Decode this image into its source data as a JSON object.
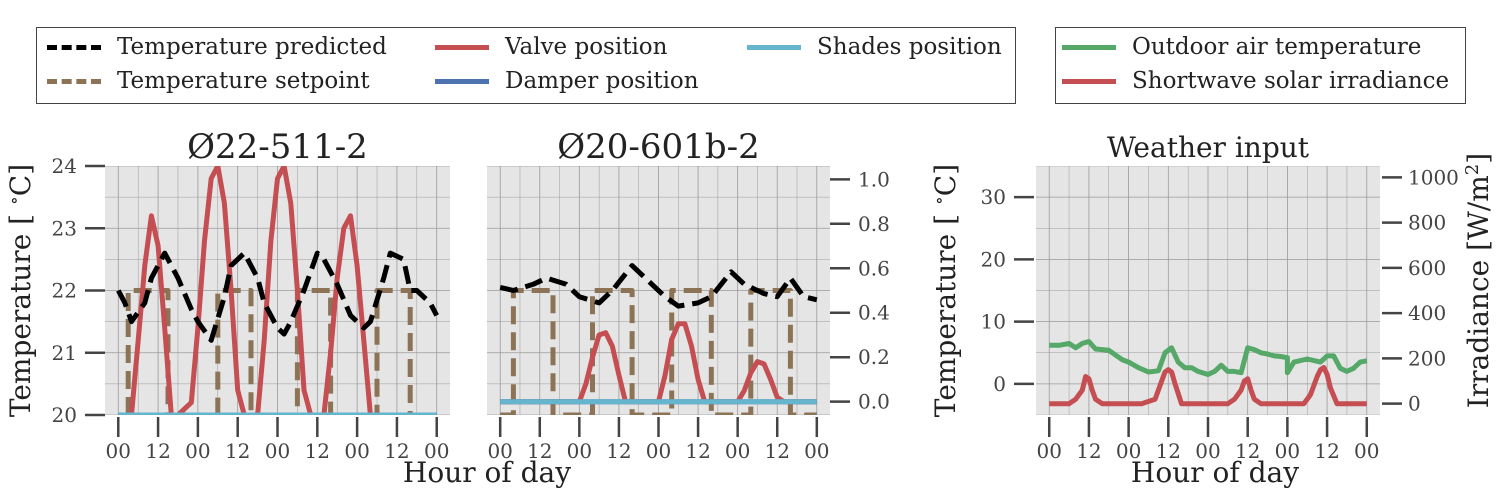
{
  "legend_main": [
    {
      "label": "Temperature predicted",
      "color": "#000000",
      "dash": true
    },
    {
      "label": "Temperature setpoint",
      "color": "#8c7356",
      "dash": true
    },
    {
      "label": "Valve position",
      "color": "#c44e52",
      "dash": false
    },
    {
      "label": "Damper position",
      "color": "#4c72b0",
      "dash": false
    },
    {
      "label": "Shades position",
      "color": "#64b5cd",
      "dash": false
    }
  ],
  "legend_weather": [
    {
      "label": "Outdoor air temperature",
      "color": "#55a868",
      "dash": false
    },
    {
      "label": "Shortwave solar irradiance",
      "color": "#c44e52",
      "dash": false
    }
  ],
  "shared": {
    "xlabel": "Hour of day",
    "x_ticklabels": [
      "00",
      "12",
      "00",
      "12",
      "00",
      "12",
      "00",
      "12",
      "00"
    ],
    "x_ticks_hours": [
      0,
      12,
      24,
      36,
      48,
      60,
      72,
      84,
      96
    ]
  },
  "chart_data": [
    {
      "type": "line",
      "title": "Ø22-511-2",
      "ylabel": "Temperature [$^\\circ$C]",
      "ylim_left": [
        20,
        24
      ],
      "left_ticks": [
        "20",
        "21",
        "22",
        "23",
        "24"
      ],
      "ylim_right": [
        0,
        1
      ],
      "grid": true,
      "series": [
        {
          "name": "Temperature predicted",
          "axis": "left",
          "x": [
            0,
            2,
            4,
            8,
            10,
            14,
            18,
            22,
            24,
            28,
            32,
            34,
            38,
            42,
            44,
            48,
            50,
            52,
            56,
            60,
            62,
            66,
            70,
            74,
            76,
            80,
            82,
            86,
            88,
            90,
            94,
            96
          ],
          "y": [
            22.0,
            21.8,
            21.5,
            21.8,
            22.2,
            22.6,
            22.2,
            21.7,
            21.5,
            21.2,
            21.9,
            22.4,
            22.6,
            22.2,
            21.8,
            21.4,
            21.3,
            21.5,
            22.0,
            22.6,
            22.5,
            22.1,
            21.6,
            21.4,
            21.5,
            22.2,
            22.6,
            22.5,
            22.0,
            22.0,
            21.8,
            21.6
          ]
        },
        {
          "name": "Temperature setpoint",
          "axis": "left",
          "x": [
            3,
            3,
            7,
            7,
            15,
            15,
            24,
            24,
            30,
            30,
            40,
            40,
            48,
            48,
            54,
            54,
            64,
            64,
            72,
            72,
            78,
            78,
            88,
            88,
            96
          ],
          "y": [
            20,
            22,
            22,
            22,
            22,
            20,
            20,
            20,
            20,
            22,
            22,
            20,
            20,
            20,
            20,
            22,
            22,
            20,
            20,
            20,
            20,
            22,
            22,
            20,
            20
          ]
        },
        {
          "name": "Valve position",
          "axis": "right",
          "x": [
            4,
            6,
            8,
            10,
            12,
            14,
            16,
            18,
            22,
            24,
            26,
            28,
            30,
            32,
            34,
            36,
            38,
            42,
            44,
            46,
            48,
            50,
            52,
            54,
            56,
            58,
            62,
            64,
            66,
            68,
            70,
            72,
            74,
            76,
            78
          ],
          "y": [
            0,
            0.3,
            0.6,
            0.8,
            0.68,
            0.35,
            0,
            0,
            0.05,
            0.35,
            0.7,
            0.95,
            1.0,
            0.85,
            0.5,
            0.1,
            0,
            0,
            0.3,
            0.7,
            0.95,
            1.0,
            0.85,
            0.5,
            0.1,
            0,
            0,
            0.25,
            0.55,
            0.75,
            0.8,
            0.6,
            0.3,
            0,
            0
          ]
        },
        {
          "name": "Damper position",
          "axis": "right",
          "x": [
            0,
            96
          ],
          "y": [
            0,
            0
          ]
        },
        {
          "name": "Shades position",
          "axis": "right",
          "x": [
            0,
            96
          ],
          "y": [
            0,
            0
          ]
        }
      ]
    },
    {
      "type": "line",
      "title": "Ø20-601b-2",
      "right_ticks": [
        "0.0",
        "0.2",
        "0.4",
        "0.6",
        "0.8",
        "1.0"
      ],
      "ylim_left": [
        20,
        24
      ],
      "ylim_right": [
        -0.06,
        1.06
      ],
      "grid": true,
      "series": [
        {
          "name": "Temperature predicted",
          "axis": "left",
          "x": [
            0,
            4,
            10,
            14,
            20,
            24,
            30,
            34,
            40,
            46,
            50,
            54,
            60,
            64,
            70,
            74,
            80,
            84,
            88,
            92,
            96
          ],
          "y": [
            22.05,
            22.0,
            22.1,
            22.2,
            22.1,
            21.9,
            21.8,
            22.0,
            22.4,
            22.1,
            21.9,
            21.75,
            21.8,
            21.9,
            22.3,
            22.1,
            21.95,
            21.9,
            22.2,
            21.9,
            21.85
          ]
        },
        {
          "name": "Temperature setpoint",
          "axis": "left",
          "x": [
            0,
            4,
            4,
            16,
            16,
            24,
            24,
            28,
            28,
            40,
            40,
            48,
            48,
            52,
            52,
            64,
            64,
            72,
            72,
            76,
            76,
            88,
            88,
            96
          ],
          "y": [
            20,
            20,
            22,
            22,
            20,
            20,
            20,
            20,
            22,
            22,
            20,
            20,
            20,
            20,
            22,
            22,
            20,
            20,
            20,
            20,
            22,
            22,
            20,
            20
          ]
        },
        {
          "name": "Valve position",
          "axis": "right",
          "x": [
            0,
            24,
            26,
            28,
            30,
            32,
            34,
            36,
            38,
            48,
            50,
            52,
            54,
            56,
            58,
            60,
            62,
            72,
            74,
            76,
            78,
            80,
            82,
            84,
            86,
            96
          ],
          "y": [
            0,
            0,
            0.08,
            0.2,
            0.3,
            0.31,
            0.25,
            0.12,
            0,
            0,
            0.12,
            0.28,
            0.35,
            0.35,
            0.25,
            0.1,
            0,
            0,
            0.05,
            0.13,
            0.18,
            0.17,
            0.1,
            0.02,
            0,
            0
          ]
        },
        {
          "name": "Damper position",
          "axis": "right",
          "x": [
            0,
            96
          ],
          "y": [
            0,
            0
          ]
        },
        {
          "name": "Shades position",
          "axis": "right",
          "x": [
            0,
            96
          ],
          "y": [
            0,
            0
          ]
        }
      ]
    },
    {
      "type": "line",
      "title": "Weather input",
      "ylabel": "Temperature [$^\\circ$C]",
      "ylabel_right": "Irradiance [W/m$^2$]",
      "ylim_left": [
        -5,
        35
      ],
      "left_ticks": [
        "0",
        "10",
        "20",
        "30"
      ],
      "ylim_right": [
        -50,
        1050
      ],
      "right_ticks": [
        "0",
        "200",
        "400",
        "600",
        "800",
        "1000"
      ],
      "grid": true,
      "series": [
        {
          "name": "Outdoor air temperature",
          "axis": "left",
          "x": [
            0,
            3,
            6,
            8,
            10,
            12,
            14,
            18,
            22,
            24,
            27,
            30,
            33,
            35,
            37,
            39,
            41,
            43,
            45,
            48,
            50,
            52,
            54,
            56,
            58,
            60,
            62,
            64,
            66,
            68,
            70,
            72,
            72,
            74,
            78,
            82,
            84,
            86,
            88,
            90,
            92,
            94,
            96
          ],
          "y": [
            6.2,
            6.2,
            6.5,
            5.8,
            6.5,
            6.8,
            5.6,
            5.4,
            3.9,
            3.5,
            2.6,
            1.9,
            2.1,
            5.0,
            5.8,
            3.5,
            2.6,
            2.6,
            2.0,
            1.5,
            2.0,
            3.0,
            2.0,
            2.0,
            1.8,
            5.8,
            5.5,
            5.0,
            4.8,
            4.5,
            4.4,
            4.2,
            1.8,
            3.5,
            4.0,
            3.5,
            4.5,
            4.5,
            2.5,
            2.0,
            2.5,
            3.5,
            3.7
          ]
        },
        {
          "name": "Shortwave solar irradiance",
          "axis": "right",
          "x": [
            0,
            6,
            8,
            10,
            11,
            12,
            13,
            14,
            16,
            28,
            32,
            34,
            35,
            36,
            37,
            38,
            40,
            54,
            56,
            58,
            59,
            60,
            61,
            62,
            64,
            77,
            79,
            81,
            82,
            83,
            84,
            85,
            87,
            96
          ],
          "y": [
            0,
            0,
            20,
            60,
            120,
            110,
            60,
            20,
            0,
            0,
            20,
            100,
            140,
            150,
            140,
            90,
            0,
            0,
            20,
            60,
            100,
            110,
            60,
            20,
            0,
            0,
            40,
            120,
            150,
            160,
            130,
            70,
            0,
            0
          ]
        }
      ]
    }
  ]
}
